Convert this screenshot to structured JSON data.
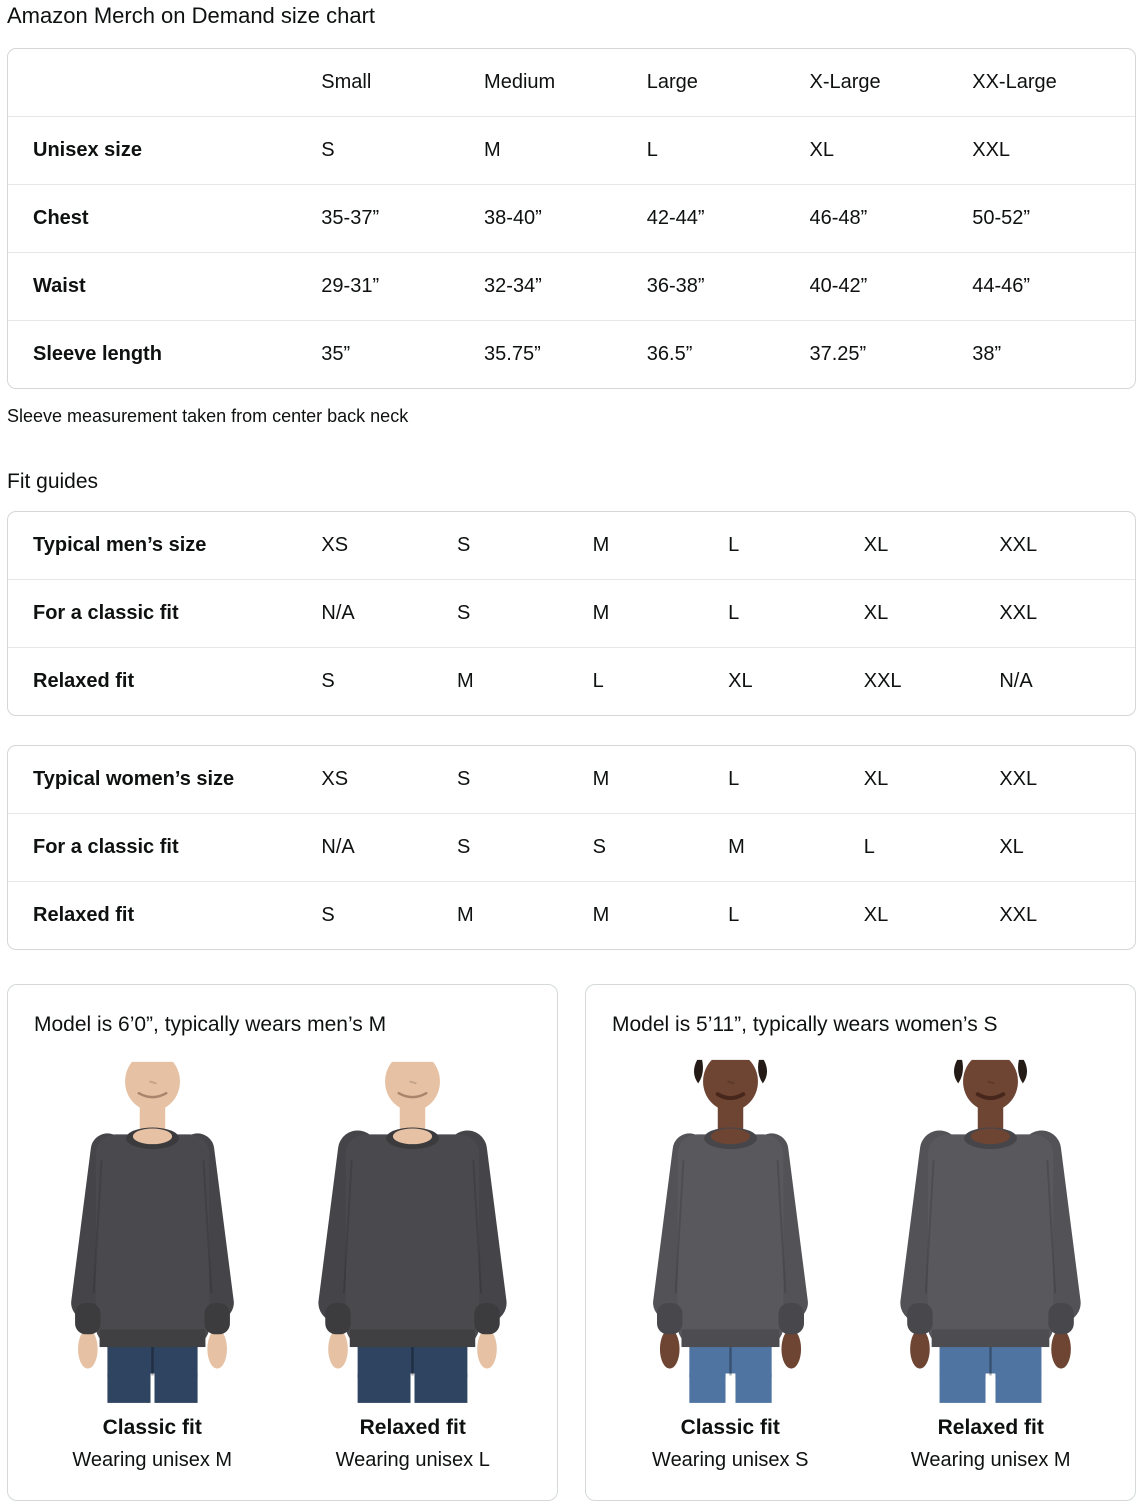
{
  "page": {
    "title": "Amazon Merch on Demand size chart"
  },
  "size_table": {
    "columns": [
      "Small",
      "Medium",
      "Large",
      "X-Large",
      "XX-Large"
    ],
    "rows": [
      {
        "label": "Unisex size",
        "values": [
          "S",
          "M",
          "L",
          "XL",
          "XXL"
        ]
      },
      {
        "label": "Chest",
        "values": [
          "35-37”",
          "38-40”",
          "42-44”",
          "46-48”",
          "50-52”"
        ]
      },
      {
        "label": "Waist",
        "values": [
          "29-31”",
          "32-34”",
          "36-38”",
          "40-42”",
          "44-46”"
        ]
      },
      {
        "label": "Sleeve length",
        "values": [
          "35”",
          "35.75”",
          "36.5”",
          "37.25”",
          "38”"
        ]
      }
    ],
    "footnote": "Sleeve measurement taken from center back neck"
  },
  "fit_guides": {
    "heading": "Fit guides",
    "tables": [
      {
        "rows": [
          {
            "label": "Typical men’s size",
            "values": [
              "XS",
              "S",
              "M",
              "L",
              "XL",
              "XXL"
            ]
          },
          {
            "label": "For a classic fit",
            "values": [
              "N/A",
              "S",
              "M",
              "L",
              "XL",
              "XXL"
            ]
          },
          {
            "label": "Relaxed fit",
            "values": [
              "S",
              "M",
              "L",
              "XL",
              "XXL",
              "N/A"
            ]
          }
        ]
      },
      {
        "rows": [
          {
            "label": "Typical women’s size",
            "values": [
              "XS",
              "S",
              "M",
              "L",
              "XL",
              "XXL"
            ]
          },
          {
            "label": "For a classic fit",
            "values": [
              "N/A",
              "S",
              "S",
              "M",
              "L",
              "XL"
            ]
          },
          {
            "label": "Relaxed fit",
            "values": [
              "S",
              "M",
              "M",
              "L",
              "XL",
              "XXL"
            ]
          }
        ]
      }
    ]
  },
  "model_cards": [
    {
      "title": "Model is 6’0”, typically wears men’s M",
      "figures": [
        {
          "fit_label": "Classic fit",
          "wearing": "Wearing unisex M"
        },
        {
          "fit_label": "Relaxed fit",
          "wearing": "Wearing unisex L"
        }
      ]
    },
    {
      "title": "Model is 5’11”, typically wears women’s S",
      "figures": [
        {
          "fit_label": "Classic fit",
          "wearing": "Wearing unisex S"
        },
        {
          "fit_label": "Relaxed fit",
          "wearing": "Wearing unisex M"
        }
      ]
    }
  ],
  "colors": {
    "text": "#0f1111",
    "row_divider": "#e7e7e7",
    "table_border": "#d6d6d6",
    "card_border": "#d5d9d9",
    "male_skin": "#e6c1a3",
    "male_sweatshirt": "#4a4a4e",
    "male_jeans": "#2f4460",
    "female_skin": "#6e4433",
    "female_sweatshirt": "#58585d",
    "female_jeans": "#4f74a1"
  }
}
